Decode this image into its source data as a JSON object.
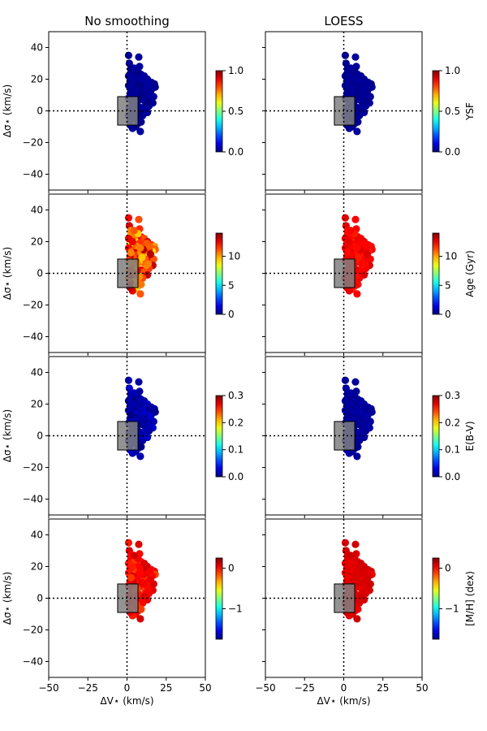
{
  "chart_data": {
    "type": "scatter",
    "columns": [
      "No smoothing",
      "LOESS"
    ],
    "xlabel": "ΔV⋆ (km/s)",
    "ylabel": "Δσ⋆ (km/s)",
    "xlim": [
      -50,
      50
    ],
    "ylim": [
      -50,
      50
    ],
    "xticks": [
      -50,
      -25,
      0,
      25,
      50
    ],
    "xtick_labels": [
      "−50",
      "−25",
      "0",
      "25",
      "50"
    ],
    "yticks": [
      40,
      20,
      0,
      -20,
      -40
    ],
    "ytick_labels": [
      "40",
      "20",
      "0",
      "−20",
      "−40"
    ],
    "reference_lines": {
      "x": 0,
      "y": 0,
      "style": "dotted"
    },
    "box": {
      "x0": -6,
      "x1": 7,
      "y0": -9,
      "y1": 9,
      "color": "#808080"
    },
    "colormap": "jet",
    "rows": [
      {
        "quantity": "YSF",
        "label": "YSF",
        "clim": [
          0,
          1
        ],
        "ticks": [
          0,
          0.5,
          1
        ],
        "tick_labels": [
          "0.0",
          "0.5",
          "1.0"
        ],
        "raw_mean": 0.02,
        "raw_spread": 0.02,
        "loess_mean": 0.02,
        "loess_spread": 0.01
      },
      {
        "quantity": "Age",
        "label": "Age (Gyr)",
        "clim": [
          0,
          14
        ],
        "ticks": [
          0,
          5,
          10
        ],
        "tick_labels": [
          "0",
          "5",
          "10"
        ],
        "raw_mean": 11.2,
        "raw_spread": 2.4,
        "loess_mean": 12.3,
        "loess_spread": 0.5
      },
      {
        "quantity": "E(B-V)",
        "label": "E(B-V)",
        "clim": [
          0,
          0.3
        ],
        "ticks": [
          0,
          0.1,
          0.2,
          0.3
        ],
        "tick_labels": [
          "0.0",
          "0.1",
          "0.2",
          "0.3"
        ],
        "raw_mean": 0.012,
        "raw_spread": 0.012,
        "loess_mean": 0.008,
        "loess_spread": 0.004
      },
      {
        "quantity": "[M/H]",
        "label": "[M/H] (dex)",
        "clim": [
          -1.75,
          0.25
        ],
        "ticks": [
          -1,
          0
        ],
        "tick_labels": [
          "−1",
          "0"
        ],
        "raw_mean": 0.0,
        "raw_spread": 0.12,
        "loess_mean": 0.07,
        "loess_spread": 0.04
      }
    ],
    "points": [
      {
        "x": 1.0,
        "y": 35
      },
      {
        "x": 7.5,
        "y": 34
      },
      {
        "x": 1.5,
        "y": 30
      },
      {
        "x": 8.0,
        "y": 28
      },
      {
        "x": 2.5,
        "y": 25
      },
      {
        "x": 4.0,
        "y": 22
      },
      {
        "x": 6.0,
        "y": 21
      },
      {
        "x": 9.0,
        "y": 23
      },
      {
        "x": 11.0,
        "y": 22
      },
      {
        "x": 13.0,
        "y": 20
      },
      {
        "x": 15.5,
        "y": 18
      },
      {
        "x": 17.5,
        "y": 17
      },
      {
        "x": 18.0,
        "y": 15
      },
      {
        "x": 16.0,
        "y": 14
      },
      {
        "x": 14.0,
        "y": 15
      },
      {
        "x": 12.0,
        "y": 16
      },
      {
        "x": 10.0,
        "y": 18
      },
      {
        "x": 8.0,
        "y": 19
      },
      {
        "x": 6.0,
        "y": 17
      },
      {
        "x": 4.0,
        "y": 18
      },
      {
        "x": 2.0,
        "y": 19
      },
      {
        "x": 1.0,
        "y": 16
      },
      {
        "x": 3.0,
        "y": 14
      },
      {
        "x": 5.0,
        "y": 13
      },
      {
        "x": 7.0,
        "y": 12
      },
      {
        "x": 9.0,
        "y": 13
      },
      {
        "x": 11.0,
        "y": 12
      },
      {
        "x": 13.0,
        "y": 10
      },
      {
        "x": 15.0,
        "y": 8
      },
      {
        "x": 17.0,
        "y": 9
      },
      {
        "x": 16.5,
        "y": 5
      },
      {
        "x": 14.0,
        "y": 3
      },
      {
        "x": 12.0,
        "y": 5
      },
      {
        "x": 10.0,
        "y": 7
      },
      {
        "x": 8.0,
        "y": 8
      },
      {
        "x": 6.0,
        "y": 9
      },
      {
        "x": 4.0,
        "y": 10
      },
      {
        "x": 2.0,
        "y": 11
      },
      {
        "x": 1.0,
        "y": 8
      },
      {
        "x": 3.0,
        "y": 6
      },
      {
        "x": 5.0,
        "y": 4
      },
      {
        "x": 7.0,
        "y": 3
      },
      {
        "x": 9.0,
        "y": 2
      },
      {
        "x": 11.0,
        "y": 1
      },
      {
        "x": 13.0,
        "y": -1
      },
      {
        "x": 10.0,
        "y": -3
      },
      {
        "x": 8.0,
        "y": -2
      },
      {
        "x": 6.0,
        "y": -4
      },
      {
        "x": 4.0,
        "y": -5
      },
      {
        "x": 2.0,
        "y": -6
      },
      {
        "x": 1.0,
        "y": -3
      },
      {
        "x": 3.0,
        "y": -1
      },
      {
        "x": 5.0,
        "y": 0
      },
      {
        "x": 7.0,
        "y": -8
      },
      {
        "x": 9.0,
        "y": -7
      },
      {
        "x": 5.5,
        "y": -10
      },
      {
        "x": 3.5,
        "y": -11
      },
      {
        "x": 8.5,
        "y": -13
      },
      {
        "x": 2.0,
        "y": -9
      },
      {
        "x": 1.5,
        "y": 2
      },
      {
        "x": 2.5,
        "y": 27
      },
      {
        "x": 5.0,
        "y": 24
      },
      {
        "x": 7.0,
        "y": 25
      },
      {
        "x": 3.5,
        "y": 20
      },
      {
        "x": 12.5,
        "y": 19
      },
      {
        "x": 15.0,
        "y": 12
      },
      {
        "x": 11.5,
        "y": 9
      },
      {
        "x": 13.5,
        "y": 6
      },
      {
        "x": 6.5,
        "y": 6
      },
      {
        "x": 9.5,
        "y": 10
      },
      {
        "x": 1.0,
        "y": 22
      },
      {
        "x": 4.5,
        "y": 27
      },
      {
        "x": 10.5,
        "y": 15
      },
      {
        "x": 14.5,
        "y": 17
      },
      {
        "x": 8.5,
        "y": 16
      },
      {
        "x": 2.5,
        "y": 13
      }
    ]
  }
}
